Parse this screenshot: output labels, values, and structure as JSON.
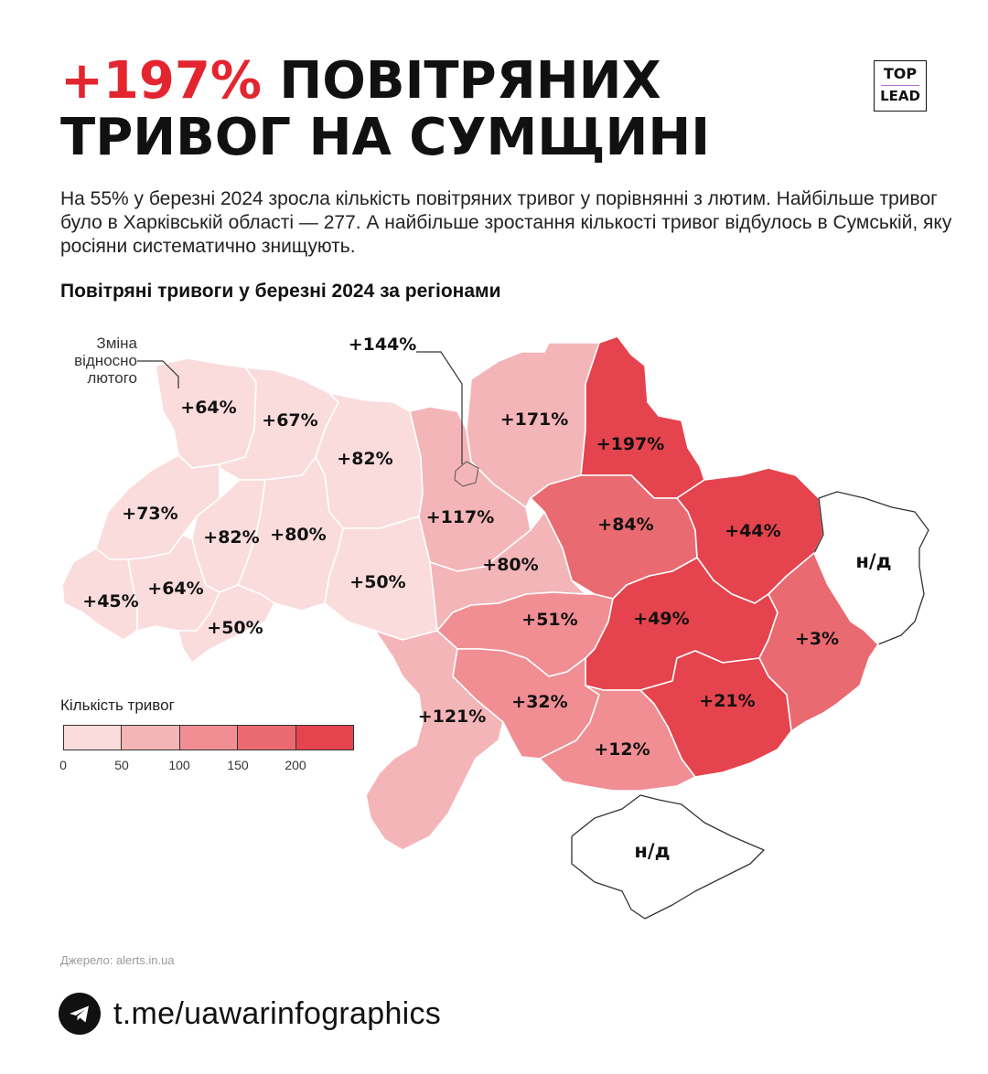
{
  "title": {
    "accent": "+197%",
    "rest": " ПОВІТРЯНИХ ТРИВОГ НА СУМЩИНІ"
  },
  "logo": {
    "line1": "TOP",
    "line2": "LEAD"
  },
  "description": "На 55% у березні 2024 зросла кількість повітряних тривог у порівнянні з лютим. Найбільше тривог було в Харківській області — 277.  А найбільше зростання кількості тривог відбулось в Сумській, яку росіяни систематично знищують.",
  "subtitle": "Повітряні тривоги у березні 2024 за регіонами",
  "note": {
    "line1": "Зміна",
    "line2": "відносно",
    "line3": "лютого"
  },
  "kyiv_city_label": "+144%",
  "legend": {
    "title": "Кількість тривог",
    "ticks": [
      "0",
      "50",
      "100",
      "150",
      "200"
    ],
    "colors": [
      "#fadcdd",
      "#f4b5b8",
      "#f08e93",
      "#ea6a71",
      "#e5434d"
    ]
  },
  "regions": [
    {
      "name": "Волинська",
      "change": "+64%",
      "bin": 0
    },
    {
      "name": "Рівненська",
      "change": "+67%",
      "bin": 0
    },
    {
      "name": "Житомирська",
      "change": "+82%",
      "bin": 0
    },
    {
      "name": "Київська",
      "change": "+117%",
      "bin": 1
    },
    {
      "name": "Чернігівська",
      "change": "+171%",
      "bin": 1
    },
    {
      "name": "Сумська",
      "change": "+197%",
      "bin": 4
    },
    {
      "name": "Полтавська",
      "change": "+84%",
      "bin": 3
    },
    {
      "name": "Харківська",
      "change": "+44%",
      "bin": 4
    },
    {
      "name": "Луганська",
      "change": "н/д",
      "bin": null
    },
    {
      "name": "Львівська",
      "change": "+73%",
      "bin": 0
    },
    {
      "name": "Тернопільська",
      "change": "+82%",
      "bin": 0
    },
    {
      "name": "Хмельницька",
      "change": "+80%",
      "bin": 0
    },
    {
      "name": "Вінницька",
      "change": "+50%",
      "bin": 0
    },
    {
      "name": "Черкаська",
      "change": "+80%",
      "bin": 1
    },
    {
      "name": "Закарпатська",
      "change": "+45%",
      "bin": 0
    },
    {
      "name": "Івано-Франківська",
      "change": "+64%",
      "bin": 0
    },
    {
      "name": "Чернівецька",
      "change": "+50%",
      "bin": 0
    },
    {
      "name": "Кіровоградська",
      "change": "+51%",
      "bin": 2
    },
    {
      "name": "Дніпропетровська",
      "change": "+49%",
      "bin": 4
    },
    {
      "name": "Донецька",
      "change": "+3%",
      "bin": 3
    },
    {
      "name": "Одеська",
      "change": "+121%",
      "bin": 1
    },
    {
      "name": "Миколаївська",
      "change": "+32%",
      "bin": 2
    },
    {
      "name": "Херсонська",
      "change": "+12%",
      "bin": 2
    },
    {
      "name": "Запорізька",
      "change": "+21%",
      "bin": 4
    },
    {
      "name": "АР Крим",
      "change": "н/д",
      "bin": null
    }
  ],
  "source": "Джерело: alerts.in.ua",
  "telegram": "t.me/uawarinfographics"
}
